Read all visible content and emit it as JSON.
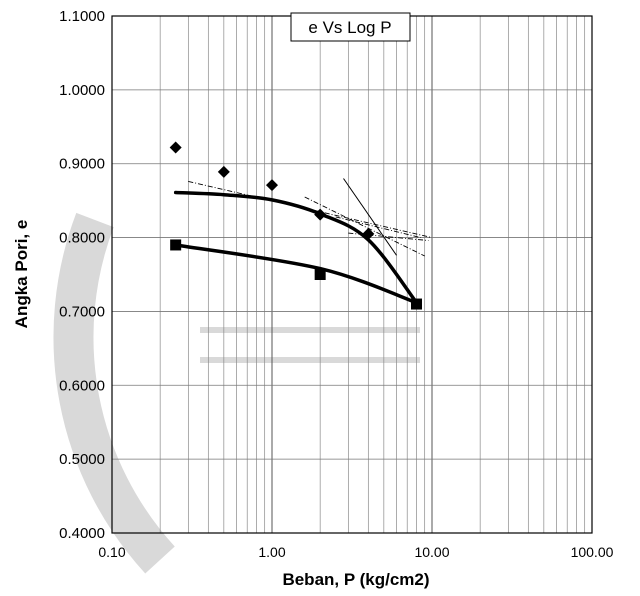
{
  "chart_data": {
    "type": "scatter",
    "title": "e Vs Log P",
    "xlabel": "Beban, P (kg/cm2)",
    "ylabel": "Angka Pori, e",
    "x_scale": "log",
    "xlim": [
      0.1,
      100
    ],
    "ylim": [
      0.4,
      1.1
    ],
    "grid": true,
    "x_tick_labels": [
      "0.10",
      "1.00",
      "10.00",
      "100.00"
    ],
    "y_tick_labels": [
      "0.4000",
      "0.5000",
      "0.6000",
      "0.7000",
      "0.8000",
      "0.9000",
      "1.0000",
      "1.1000"
    ],
    "series": [
      {
        "marker": "diamond",
        "points": [
          {
            "x": 0.25,
            "y": 0.922
          },
          {
            "x": 0.5,
            "y": 0.889
          },
          {
            "x": 1.0,
            "y": 0.871
          },
          {
            "x": 2.0,
            "y": 0.831
          },
          {
            "x": 4.0,
            "y": 0.805
          }
        ]
      },
      {
        "marker": "square",
        "points": [
          {
            "x": 0.25,
            "y": 0.79
          },
          {
            "x": 2.0,
            "y": 0.75
          },
          {
            "x": 8.0,
            "y": 0.71
          }
        ]
      }
    ],
    "curves": [
      {
        "style": "thick",
        "points": [
          {
            "x": 0.25,
            "y": 0.861
          },
          {
            "x": 0.5,
            "y": 0.858
          },
          {
            "x": 1.0,
            "y": 0.851
          },
          {
            "x": 2.0,
            "y": 0.832
          },
          {
            "x": 4.0,
            "y": 0.797
          },
          {
            "x": 8.0,
            "y": 0.712
          }
        ]
      },
      {
        "style": "thick",
        "points": [
          {
            "x": 0.25,
            "y": 0.79
          },
          {
            "x": 2.0,
            "y": 0.758
          },
          {
            "x": 8.0,
            "y": 0.712
          }
        ]
      },
      {
        "style": "thin-dashed",
        "points": [
          {
            "x": 0.3,
            "y": 0.876
          },
          {
            "x": 10.0,
            "y": 0.8
          }
        ]
      },
      {
        "style": "thin",
        "points": [
          {
            "x": 2.8,
            "y": 0.88
          },
          {
            "x": 6.0,
            "y": 0.776
          }
        ]
      },
      {
        "style": "thin-dashed",
        "points": [
          {
            "x": 2.5,
            "y": 0.828
          },
          {
            "x": 8.5,
            "y": 0.8
          }
        ]
      },
      {
        "style": "thin-dashed",
        "points": [
          {
            "x": 1.6,
            "y": 0.855
          },
          {
            "x": 9.0,
            "y": 0.775
          }
        ]
      },
      {
        "style": "thin-dashed",
        "points": [
          {
            "x": 3.0,
            "y": 0.806
          },
          {
            "x": 9.5,
            "y": 0.796
          }
        ]
      }
    ]
  }
}
